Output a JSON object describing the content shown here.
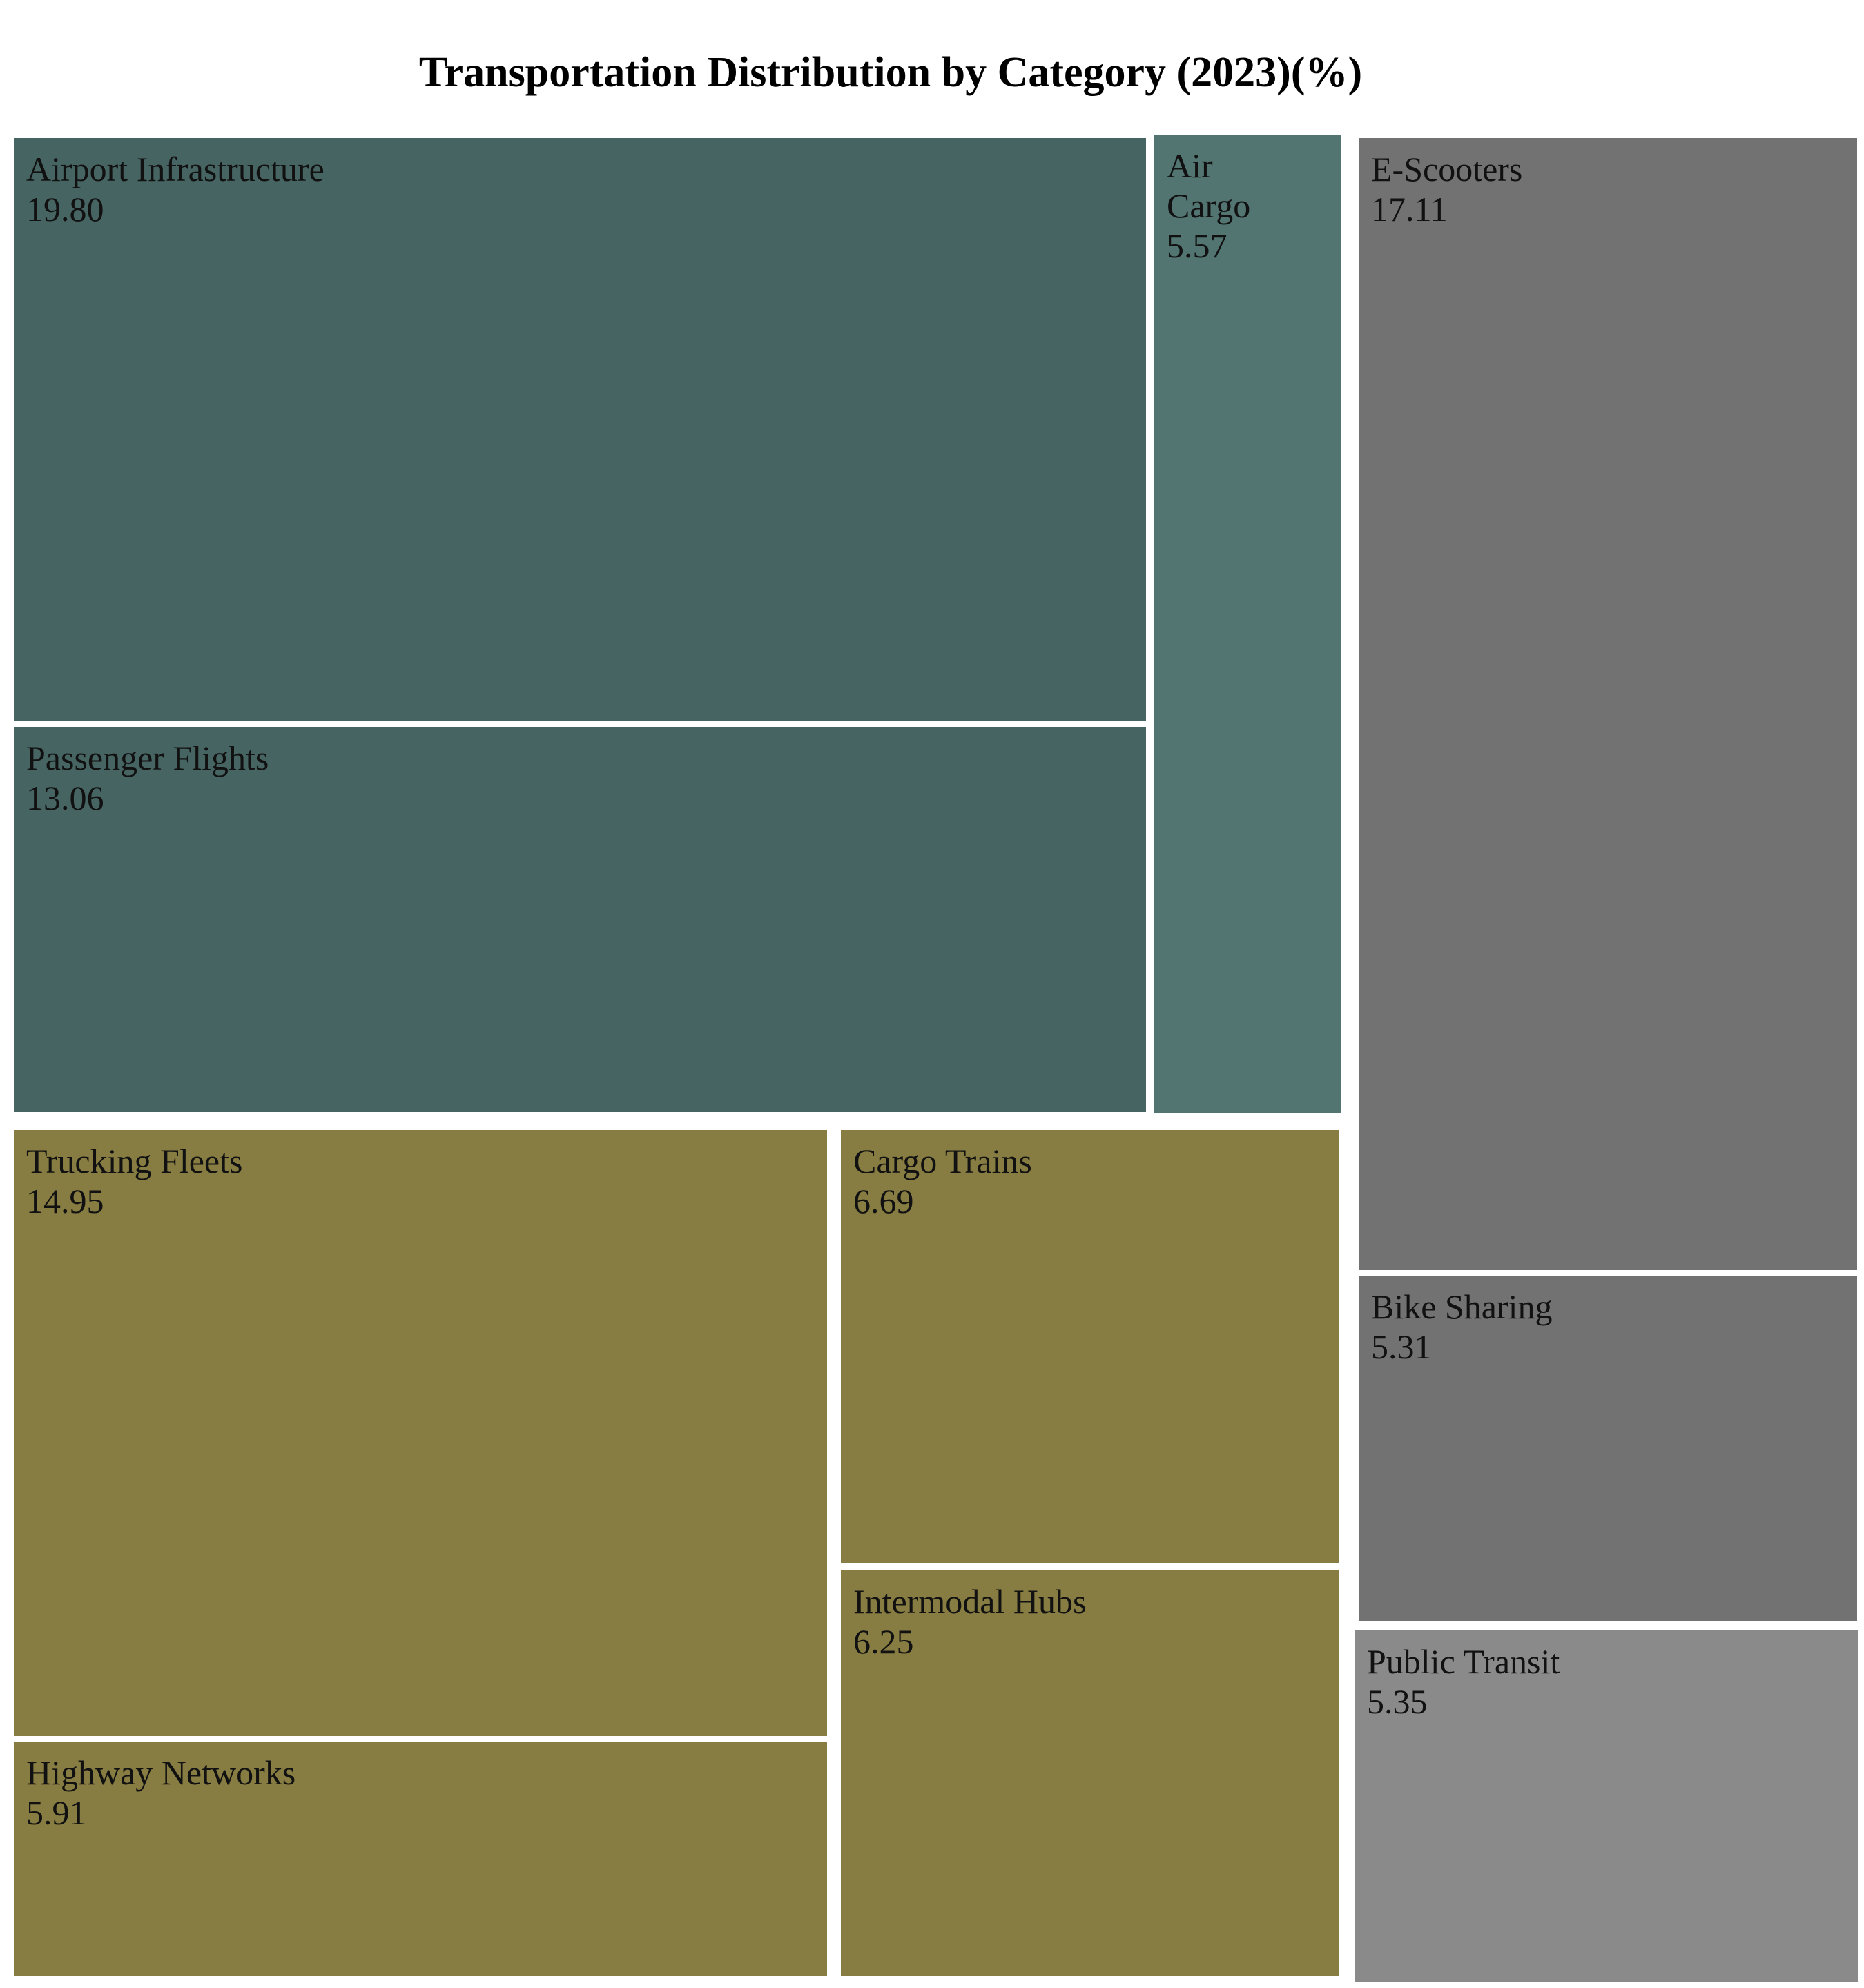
{
  "chart_data": {
    "type": "treemap",
    "title": "Transportation Distribution by Category (2023)(%)",
    "groups": [
      {
        "id": "air",
        "color": "#466462"
      },
      {
        "id": "road",
        "color": "#877d42"
      },
      {
        "id": "micro",
        "color": "#727272"
      }
    ],
    "items": [
      {
        "label": "Airport Infrastructure",
        "value": 19.8,
        "display": "19.80",
        "group": "air",
        "color": "#466462"
      },
      {
        "label": "Passenger Flights",
        "value": 13.06,
        "display": "13.06",
        "group": "air",
        "color": "#466462"
      },
      {
        "label": "Air Cargo",
        "value": 5.57,
        "display": "5.57",
        "group": "air",
        "color": "#527571"
      },
      {
        "label": "Trucking Fleets",
        "value": 14.95,
        "display": "14.95",
        "group": "road",
        "color": "#877d42"
      },
      {
        "label": "Highway Networks",
        "value": 5.91,
        "display": "5.91",
        "group": "road",
        "color": "#877d42"
      },
      {
        "label": "Cargo Trains",
        "value": 6.69,
        "display": "6.69",
        "group": "road",
        "color": "#877d42"
      },
      {
        "label": "Intermodal Hubs",
        "value": 6.25,
        "display": "6.25",
        "group": "road",
        "color": "#877d42"
      },
      {
        "label": "E-Scooters",
        "value": 17.11,
        "display": "17.11",
        "group": "micro",
        "color": "#727272"
      },
      {
        "label": "Bike Sharing",
        "value": 5.31,
        "display": "5.31",
        "group": "micro",
        "color": "#727272"
      },
      {
        "label": "Public Transit",
        "value": 5.35,
        "display": "5.35",
        "group": "micro",
        "color": "#8a8a8a"
      }
    ]
  }
}
